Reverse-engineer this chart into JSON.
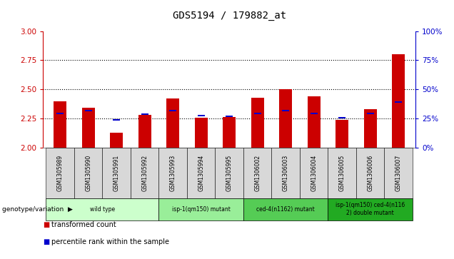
{
  "title": "GDS5194 / 179882_at",
  "samples": [
    "GSM1305989",
    "GSM1305990",
    "GSM1305991",
    "GSM1305992",
    "GSM1305993",
    "GSM1305994",
    "GSM1305995",
    "GSM1306002",
    "GSM1306003",
    "GSM1306004",
    "GSM1306005",
    "GSM1306006",
    "GSM1306007"
  ],
  "red_values": [
    2.4,
    2.34,
    2.13,
    2.28,
    2.42,
    2.255,
    2.265,
    2.43,
    2.5,
    2.44,
    2.24,
    2.33,
    2.8
  ],
  "blue_values": [
    2.295,
    2.315,
    2.24,
    2.29,
    2.315,
    2.275,
    2.27,
    2.295,
    2.32,
    2.295,
    2.255,
    2.295,
    2.39
  ],
  "ylim_left": [
    2.0,
    3.0
  ],
  "ylim_right": [
    0,
    100
  ],
  "yticks_left": [
    2.0,
    2.25,
    2.5,
    2.75,
    3.0
  ],
  "yticks_right": [
    0,
    25,
    50,
    75,
    100
  ],
  "grid_lines": [
    2.25,
    2.5,
    2.75
  ],
  "groups": [
    {
      "label": "wild type",
      "indices": [
        0,
        1,
        2,
        3
      ],
      "color": "#ccffcc"
    },
    {
      "label": "isp-1(qm150) mutant",
      "indices": [
        4,
        5,
        6
      ],
      "color": "#99ee99"
    },
    {
      "label": "ced-4(n1162) mutant",
      "indices": [
        7,
        8,
        9
      ],
      "color": "#55cc55"
    },
    {
      "label": "isp-1(qm150) ced-4(n116\n2) double mutant",
      "indices": [
        10,
        11,
        12
      ],
      "color": "#22aa22"
    }
  ],
  "bar_width": 0.45,
  "red_color": "#cc0000",
  "blue_color": "#0000cc",
  "left_axis_color": "#cc0000",
  "right_axis_color": "#0000cc",
  "bg_color": "#ffffff",
  "tick_area_color": "#d8d8d8"
}
